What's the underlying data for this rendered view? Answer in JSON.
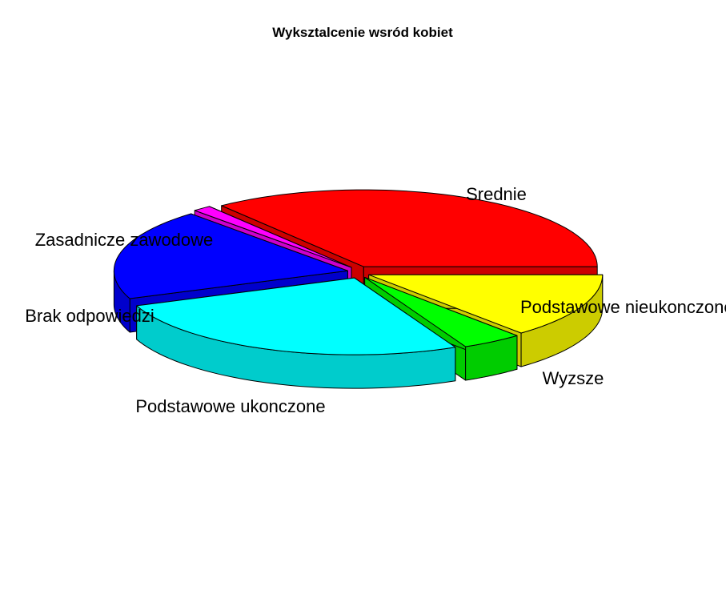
{
  "chart_data": {
    "type": "pie",
    "style": "3d-exploded",
    "title": "Wyksztalcenie wsród kobiet",
    "slices": [
      {
        "label": "Srednie",
        "value": 35.4,
        "color": "#FF0000"
      },
      {
        "label": "Podstawowe nieukonczone",
        "value": 1.3,
        "color": "#FF00FF"
      },
      {
        "label": "Wyzsze",
        "value": 19.2,
        "color": "#0000FF"
      },
      {
        "label": "Podstawowe ukonczone",
        "value": 26.2,
        "color": "#00FFFF"
      },
      {
        "label": "Brak odpowiedzi",
        "value": 4.2,
        "color": "#00FF00"
      },
      {
        "label": "Zasadnicze zawodowe",
        "value": 13.7,
        "color": "#FFFF00"
      }
    ]
  }
}
